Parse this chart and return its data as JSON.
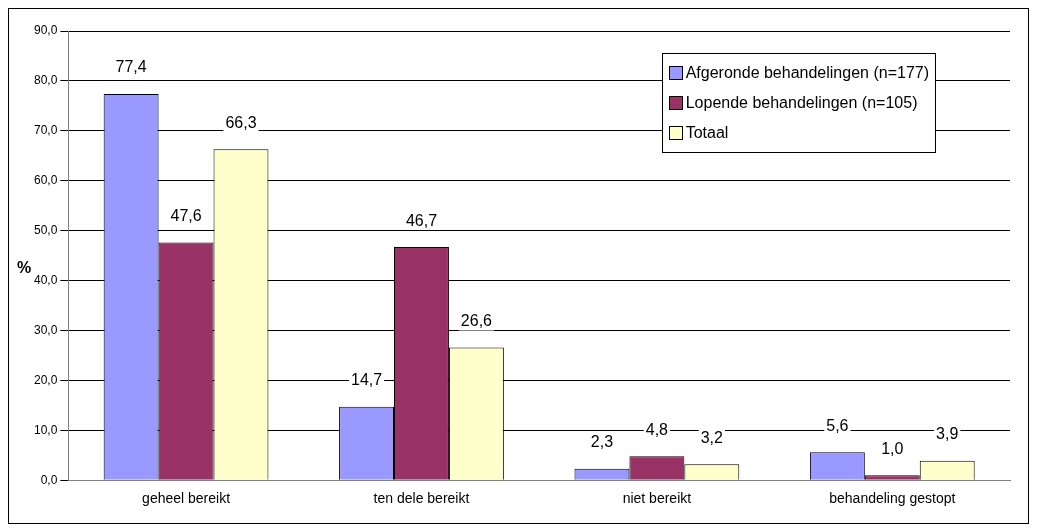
{
  "chart_data": {
    "type": "bar",
    "ylabel": "%",
    "categories": [
      "geheel bereikt",
      "ten dele bereikt",
      "niet bereikt",
      "behandeling gestopt"
    ],
    "series": [
      {
        "name": "Afgeronde behandelingen (n=177)",
        "color": "#9999ff",
        "values": [
          77.4,
          14.7,
          2.3,
          5.6
        ],
        "value_labels": [
          "77,4",
          "14,7",
          "2,3",
          "5,6"
        ]
      },
      {
        "name": "Lopende behandelingen (n=105)",
        "color": "#993366",
        "values": [
          47.6,
          46.7,
          4.8,
          1.0
        ],
        "value_labels": [
          "47,6",
          "46,7",
          "4,8",
          "1,0"
        ]
      },
      {
        "name": "Totaal",
        "color": "#ffffcc",
        "values": [
          66.3,
          26.6,
          3.2,
          3.9
        ],
        "value_labels": [
          "66,3",
          "26,6",
          "3,2",
          "3,9"
        ]
      }
    ],
    "ylim": [
      0,
      90
    ],
    "yticks": [
      {
        "value": 0,
        "label": "0,0"
      },
      {
        "value": 10,
        "label": "10,0"
      },
      {
        "value": 20,
        "label": "20,0"
      },
      {
        "value": 30,
        "label": "30,0"
      },
      {
        "value": 40,
        "label": "40,0"
      },
      {
        "value": 50,
        "label": "50,0"
      },
      {
        "value": 60,
        "label": "60,0"
      },
      {
        "value": 70,
        "label": "70,0"
      },
      {
        "value": 80,
        "label": "80,0"
      },
      {
        "value": 90,
        "label": "90,0"
      }
    ],
    "grid": "y",
    "legend": "top right"
  }
}
